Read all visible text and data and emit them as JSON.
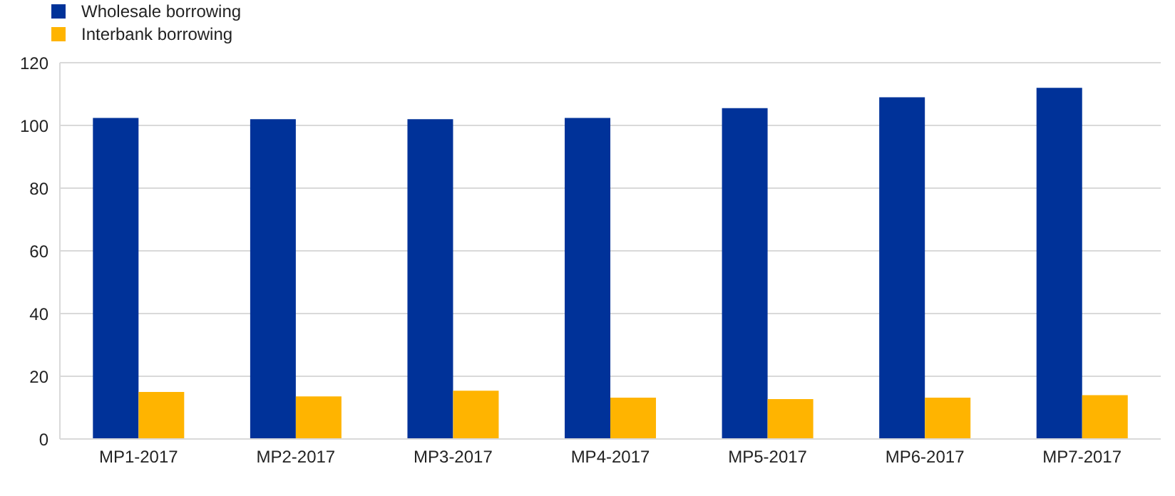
{
  "chart_data": {
    "type": "bar",
    "categories": [
      "MP1-2017",
      "MP2-2017",
      "MP3-2017",
      "MP4-2017",
      "MP5-2017",
      "MP6-2017",
      "MP7-2017"
    ],
    "series": [
      {
        "name": "Wholesale borrowing",
        "color": "#003299",
        "values": [
          102.4,
          102,
          102,
          102.4,
          105.5,
          109,
          112
        ]
      },
      {
        "name": "Interbank borrowing",
        "color": "#ffb400",
        "values": [
          15,
          13.6,
          15.4,
          13.2,
          12.7,
          13.2,
          14
        ]
      }
    ],
    "ylim": [
      0,
      120
    ],
    "yticks": [
      0,
      20,
      40,
      60,
      80,
      100,
      120
    ],
    "grid": "y",
    "legend": "top left"
  }
}
